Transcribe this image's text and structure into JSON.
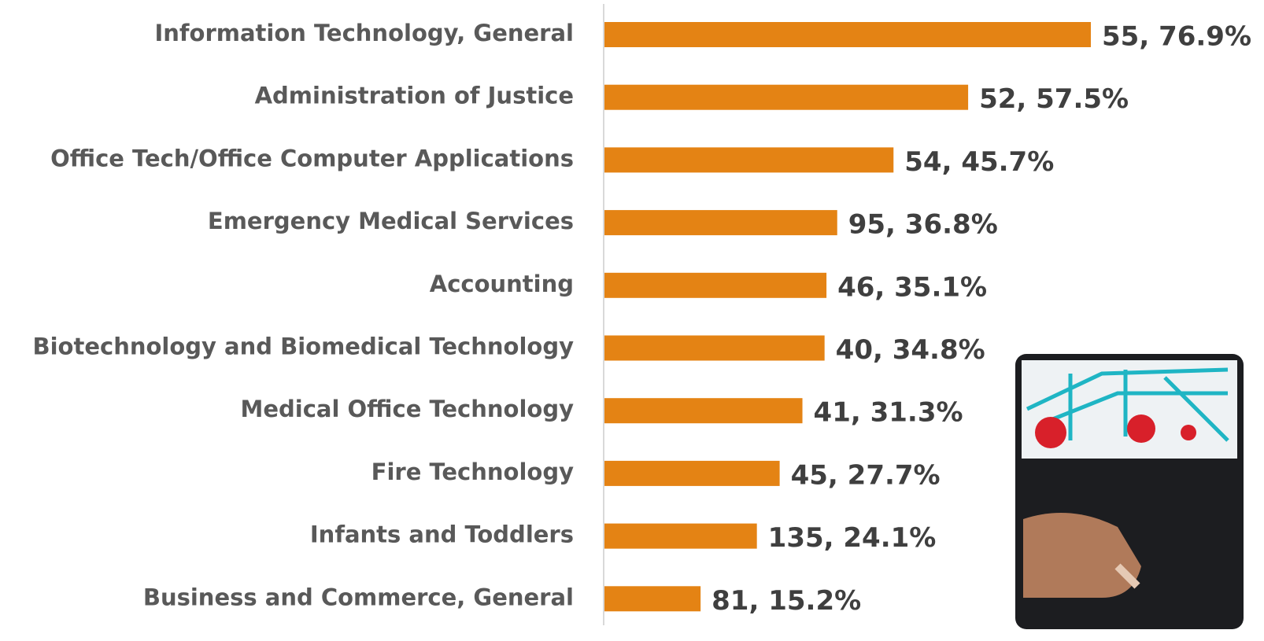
{
  "chart_data": {
    "type": "bar",
    "orientation": "horizontal",
    "color": "#e48314",
    "categories": [
      "Information Technology, General",
      "Administration of Justice",
      "Office Tech/Office Computer Applications",
      "Emergency Medical Services",
      "Accounting",
      "Biotechnology and Biomedical Technology",
      "Medical Office Technology",
      "Fire Technology",
      "Infants and Toddlers",
      "Business and Commerce, General"
    ],
    "values": [
      76.9,
      57.5,
      45.7,
      36.8,
      35.1,
      34.8,
      31.3,
      27.7,
      24.1,
      15.2
    ],
    "value_labels": [
      "55, 76.9%",
      "52, 57.5%",
      "54, 45.7%",
      "95, 36.8%",
      "46, 35.1%",
      "40, 34.8%",
      "41, 31.3%",
      "45, 27.7%",
      "135, 24.1%",
      "81, 15.2%"
    ]
  }
}
